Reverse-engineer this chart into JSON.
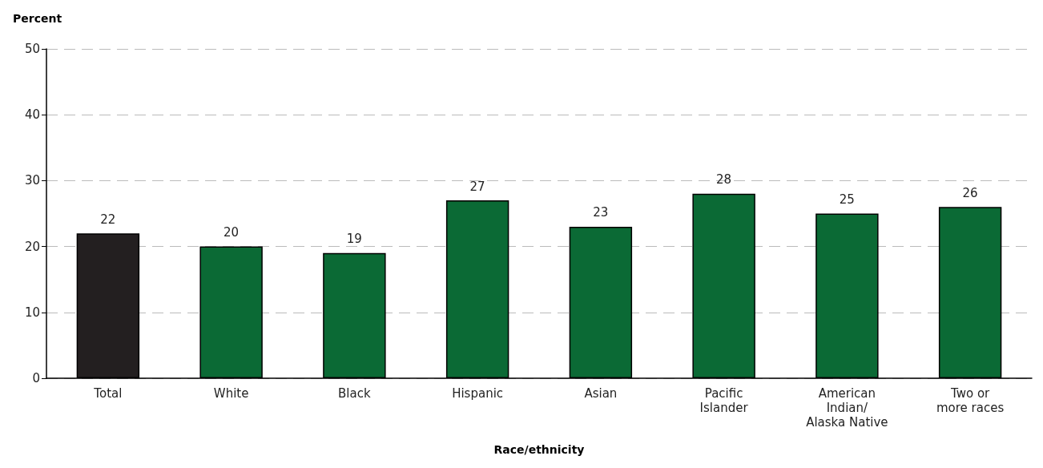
{
  "chart_data": {
    "type": "bar",
    "xlabel": "Race/ethnicity",
    "ylabel": "Percent",
    "categories": [
      "Total",
      "White",
      "Black",
      "Hispanic",
      "Asian",
      "Pacific\nIslander",
      "American\nIndian/\nAlaska Native",
      "Two or\nmore races"
    ],
    "values": [
      22,
      20,
      19,
      27,
      23,
      28,
      25,
      26
    ],
    "colors": [
      "#231f20",
      "#0b6a35",
      "#0b6a35",
      "#0b6a35",
      "#0b6a35",
      "#0b6a35",
      "#0b6a35",
      "#0b6a35"
    ],
    "ylim": [
      0,
      50
    ],
    "yticks": [
      0,
      10,
      20,
      30,
      40,
      50
    ],
    "grid": "y",
    "data_labels": true
  }
}
